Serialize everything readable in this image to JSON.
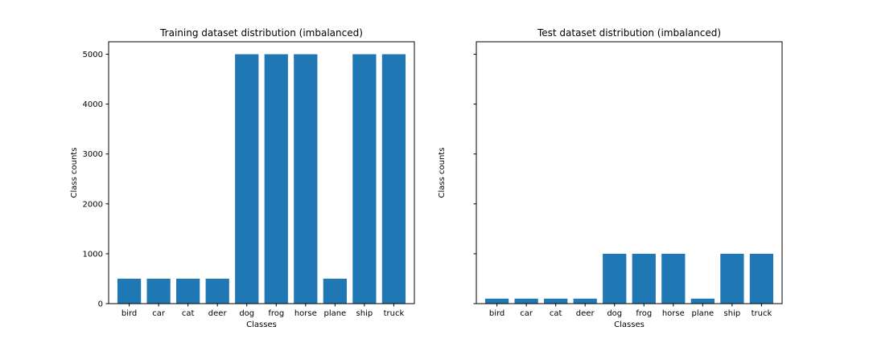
{
  "chart_data": [
    {
      "type": "bar",
      "title": "Training dataset distribution (imbalanced)",
      "xlabel": "Classes",
      "ylabel": "Class counts",
      "categories": [
        "bird",
        "car",
        "cat",
        "deer",
        "dog",
        "frog",
        "horse",
        "plane",
        "ship",
        "truck"
      ],
      "values": [
        500,
        500,
        500,
        500,
        5000,
        5000,
        5000,
        500,
        5000,
        5000
      ],
      "ylim": [
        0,
        5250
      ],
      "yticks": [
        0,
        1000,
        2000,
        3000,
        4000,
        5000
      ],
      "show_ytick_labels": true,
      "grid": false,
      "bar_color": "#1f77b4"
    },
    {
      "type": "bar",
      "title": "Test dataset distribution (imbalanced)",
      "xlabel": "Classes",
      "ylabel": "Class counts",
      "categories": [
        "bird",
        "car",
        "cat",
        "deer",
        "dog",
        "frog",
        "horse",
        "plane",
        "ship",
        "truck"
      ],
      "values": [
        100,
        100,
        100,
        100,
        1000,
        1000,
        1000,
        100,
        1000,
        1000
      ],
      "ylim": [
        0,
        5250
      ],
      "yticks": [
        0,
        1000,
        2000,
        3000,
        4000,
        5000
      ],
      "show_ytick_labels": false,
      "grid": false,
      "bar_color": "#1f77b4"
    }
  ]
}
